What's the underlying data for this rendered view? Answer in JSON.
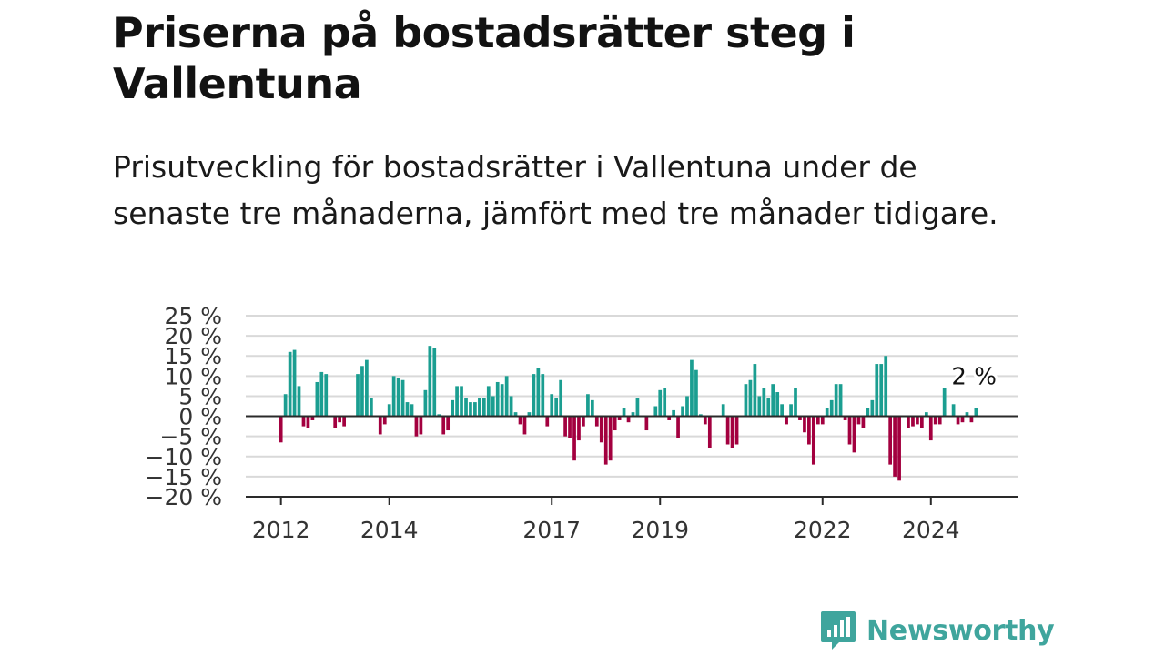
{
  "header": {
    "title": "Priserna på bostadsrätter steg i Vallentuna",
    "subtitle": "Prisutveckling för bostadsrätter i Vallentuna under de senaste tre månaderna, jämfört med tre månader tidigare."
  },
  "brand": {
    "name": "Newsworthy",
    "icon": "newsworthy-logo-icon",
    "color": "#3fa59d"
  },
  "chart_data": {
    "type": "bar",
    "title": "",
    "xlabel": "",
    "ylabel": "",
    "ylim": [
      -20,
      25
    ],
    "y_ticks": [
      {
        "value": 25,
        "label": "25 %"
      },
      {
        "value": 20,
        "label": "20 %"
      },
      {
        "value": 15,
        "label": "15 %"
      },
      {
        "value": 10,
        "label": "10 %"
      },
      {
        "value": 5,
        "label": "5 %"
      },
      {
        "value": 0,
        "label": "0 %"
      },
      {
        "value": -5,
        "label": "−5 %"
      },
      {
        "value": -10,
        "label": "−10 %"
      },
      {
        "value": -15,
        "label": "−15 %"
      },
      {
        "value": -20,
        "label": "−20 %"
      }
    ],
    "x_ticks": [
      {
        "value": 2012.0,
        "label": "2012"
      },
      {
        "value": 2014.0,
        "label": "2014"
      },
      {
        "value": 2017.0,
        "label": "2017"
      },
      {
        "value": 2019.0,
        "label": "2019"
      },
      {
        "value": 2022.0,
        "label": "2022"
      },
      {
        "value": 2024.0,
        "label": "2024"
      }
    ],
    "x_range": [
      2011.35,
      2025.6
    ],
    "grid": true,
    "colors": {
      "positive": "#1b9e91",
      "negative": "#a3003f",
      "grid": "#d9d9d9",
      "axis": "#2a2a2a"
    },
    "annotation": {
      "text": "2 %",
      "x": 2024.83,
      "y": 2
    },
    "x": [
      2012.0,
      2012.083,
      2012.167,
      2012.25,
      2012.333,
      2012.417,
      2012.5,
      2012.583,
      2012.667,
      2012.75,
      2012.833,
      2012.917,
      2013.0,
      2013.083,
      2013.167,
      2013.25,
      2013.333,
      2013.417,
      2013.5,
      2013.583,
      2013.667,
      2013.75,
      2013.833,
      2013.917,
      2014.0,
      2014.083,
      2014.167,
      2014.25,
      2014.333,
      2014.417,
      2014.5,
      2014.583,
      2014.667,
      2014.75,
      2014.833,
      2014.917,
      2015.0,
      2015.083,
      2015.167,
      2015.25,
      2015.333,
      2015.417,
      2015.5,
      2015.583,
      2015.667,
      2015.75,
      2015.833,
      2015.917,
      2016.0,
      2016.083,
      2016.167,
      2016.25,
      2016.333,
      2016.417,
      2016.5,
      2016.583,
      2016.667,
      2016.75,
      2016.833,
      2016.917,
      2017.0,
      2017.083,
      2017.167,
      2017.25,
      2017.333,
      2017.417,
      2017.5,
      2017.583,
      2017.667,
      2017.75,
      2017.833,
      2017.917,
      2018.0,
      2018.083,
      2018.167,
      2018.25,
      2018.333,
      2018.417,
      2018.5,
      2018.583,
      2018.667,
      2018.75,
      2018.833,
      2018.917,
      2019.0,
      2019.083,
      2019.167,
      2019.25,
      2019.333,
      2019.417,
      2019.5,
      2019.583,
      2019.667,
      2019.75,
      2019.833,
      2019.917,
      2020.0,
      2020.083,
      2020.167,
      2020.25,
      2020.333,
      2020.417,
      2020.5,
      2020.583,
      2020.667,
      2020.75,
      2020.833,
      2020.917,
      2021.0,
      2021.083,
      2021.167,
      2021.25,
      2021.333,
      2021.417,
      2021.5,
      2021.583,
      2021.667,
      2021.75,
      2021.833,
      2021.917,
      2022.0,
      2022.083,
      2022.167,
      2022.25,
      2022.333,
      2022.417,
      2022.5,
      2022.583,
      2022.667,
      2022.75,
      2022.833,
      2022.917,
      2023.0,
      2023.083,
      2023.167,
      2023.25,
      2023.333,
      2023.417,
      2023.5,
      2023.583,
      2023.667,
      2023.75,
      2023.833,
      2023.917,
      2024.0,
      2024.083,
      2024.167,
      2024.25,
      2024.333,
      2024.417,
      2024.5,
      2024.583,
      2024.667,
      2024.75,
      2024.833
    ],
    "values": [
      -6.5,
      5.5,
      16,
      16.5,
      7.5,
      -2.5,
      -3,
      -1,
      8.5,
      11,
      10.5,
      0,
      -3,
      -1.5,
      -2.5,
      0,
      0,
      10.5,
      12.5,
      14,
      4.5,
      0,
      -4.5,
      -2,
      3,
      10,
      9.5,
      9,
      3.5,
      3,
      -5,
      -4.5,
      6.5,
      17.5,
      17,
      0.5,
      -4.5,
      -3.5,
      4,
      7.5,
      7.5,
      4.5,
      3.5,
      3.5,
      4.5,
      4.5,
      7.5,
      5,
      8.5,
      8,
      10,
      5,
      1,
      -2,
      -4.5,
      1,
      10.5,
      12,
      10.5,
      -2.5,
      5.5,
      4.5,
      9,
      -5,
      -5.5,
      -11,
      -6,
      -2.5,
      5.5,
      4,
      -2.5,
      -6.5,
      -12,
      -11,
      -3.5,
      -1,
      2,
      -1.5,
      1,
      4.5,
      0,
      -3.5,
      0,
      2.5,
      6.5,
      7,
      -1,
      1.5,
      -5.5,
      2.5,
      5,
      14,
      11.5,
      0.5,
      -2,
      -8,
      0,
      0,
      3,
      -7,
      -8,
      -7,
      0,
      8,
      9,
      13,
      5,
      7,
      4.5,
      8,
      6,
      3,
      -2,
      3,
      7,
      -1,
      -4,
      -7,
      -12,
      -2,
      -2,
      2,
      4,
      8,
      8,
      -1,
      -7,
      -9,
      -2,
      -3,
      2,
      4,
      13,
      13,
      15,
      -12,
      -15,
      -16,
      0,
      -3,
      -2.5,
      -2,
      -3,
      1,
      -6,
      -2,
      -2,
      7,
      0,
      3,
      -2,
      -1.5,
      1,
      -1.5,
      2
    ]
  }
}
